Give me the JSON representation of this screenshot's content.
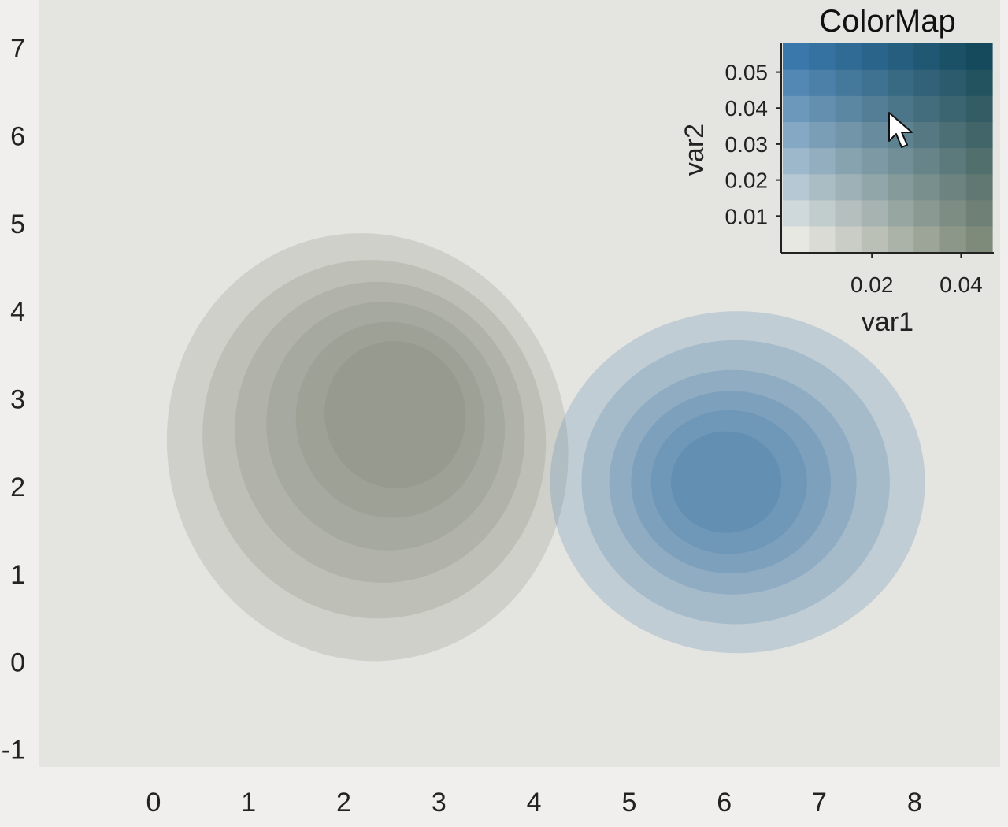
{
  "chart_data": [
    {
      "type": "contour",
      "xlim": [
        -1.2,
        8.9
      ],
      "ylim": [
        -1.2,
        7.55
      ],
      "x_ticks": [
        0,
        1,
        2,
        3,
        4,
        5,
        6,
        7,
        8
      ],
      "y_ticks": [
        -1,
        0,
        1,
        2,
        3,
        4,
        5,
        6,
        7
      ],
      "grid": false,
      "series": [
        {
          "color": "#7d8474",
          "center": [
            2.6,
            2.9
          ],
          "levels": [
            {
              "rx": 2.1,
              "ry": 2.45,
              "angle": -14,
              "dx": -0.35,
              "dy": -0.45
            },
            {
              "rx": 1.8,
              "ry": 2.05,
              "angle": -14,
              "dx": -0.28,
              "dy": -0.36
            },
            {
              "rx": 1.52,
              "ry": 1.72,
              "angle": -14,
              "dx": -0.22,
              "dy": -0.28
            },
            {
              "rx": 1.25,
              "ry": 1.42,
              "angle": -14,
              "dx": -0.16,
              "dy": -0.21
            },
            {
              "rx": 0.99,
              "ry": 1.12,
              "angle": -14,
              "dx": -0.11,
              "dy": -0.14
            },
            {
              "rx": 0.74,
              "ry": 0.84,
              "angle": -14,
              "dx": -0.06,
              "dy": -0.08
            }
          ]
        },
        {
          "color": "#3575a5",
          "center": [
            6.0,
            2.05
          ],
          "levels": [
            {
              "rx": 1.97,
              "ry": 1.95,
              "angle": 0,
              "dx": 0.14,
              "dy": 0.0
            },
            {
              "rx": 1.62,
              "ry": 1.62,
              "angle": 0,
              "dx": 0.12,
              "dy": 0.0
            },
            {
              "rx": 1.3,
              "ry": 1.28,
              "angle": 0,
              "dx": 0.09,
              "dy": 0.0
            },
            {
              "rx": 1.05,
              "ry": 1.04,
              "angle": 0,
              "dx": 0.07,
              "dy": 0.0
            },
            {
              "rx": 0.82,
              "ry": 0.82,
              "angle": 0,
              "dx": 0.05,
              "dy": 0.0
            },
            {
              "rx": 0.58,
              "ry": 0.58,
              "angle": 0,
              "dx": 0.02,
              "dy": 0.0
            }
          ]
        }
      ]
    },
    {
      "type": "heatmap",
      "title": "ColorMap",
      "xlabel": "var1",
      "ylabel": "var2",
      "x_ticks": [
        0.02,
        0.04
      ],
      "y_ticks": [
        0.01,
        0.02,
        0.03,
        0.04,
        0.05
      ],
      "xlim": [
        0,
        0.047
      ],
      "ylim": [
        0,
        0.058
      ],
      "grid_size": [
        8,
        8
      ],
      "corner_colors": {
        "bottom_left": "#e8e8e3",
        "bottom_right": "#7e8a7a",
        "top_left": "#3a78ac",
        "top_right": "#154a5c"
      }
    }
  ]
}
